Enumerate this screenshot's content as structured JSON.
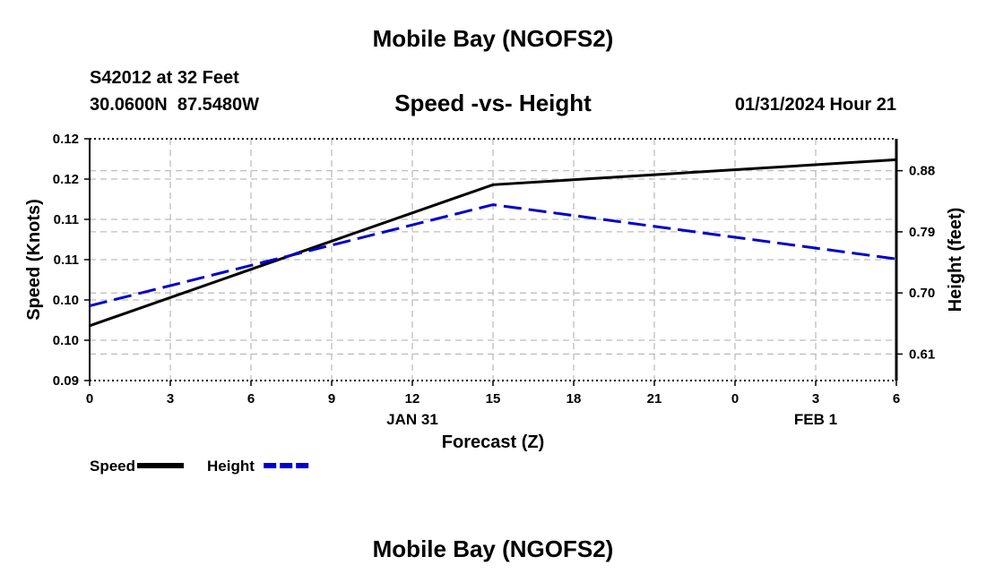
{
  "header": {
    "title": "Mobile Bay (NGOFS2)",
    "station": "S42012 at 32 Feet",
    "coordinates": "30.0600N  87.5480W",
    "timestamp": "01/31/2024 Hour 21"
  },
  "footer": {
    "title": "Mobile Bay (NGOFS2)"
  },
  "chart_data": {
    "type": "line",
    "title": "Speed -vs- Height",
    "xlabel": "Forecast (Z)",
    "x_tick_labels": [
      "0",
      "3",
      "6",
      "9",
      "12",
      "15",
      "18",
      "21",
      "0",
      "3",
      "6"
    ],
    "x_date_labels": [
      {
        "label": "JAN 31",
        "hours": 12
      },
      {
        "label": "FEB 1",
        "hours": 27
      }
    ],
    "xlim_hours": [
      0,
      30
    ],
    "grid": true,
    "legend_position": "bottom-left",
    "y_left": {
      "label": "Speed (Knots)",
      "lim": [
        0.09,
        0.12
      ],
      "tick_labels": [
        "0.12",
        "0.12",
        "0.11",
        "0.11",
        "0.10",
        "0.10",
        "0.09"
      ],
      "tick_values": [
        0.12,
        0.115,
        0.11,
        0.105,
        0.1,
        0.095,
        0.09
      ]
    },
    "y_right": {
      "label": "Height (feet)",
      "lim": [
        0.571,
        0.927
      ],
      "tick_labels": [
        "0.88",
        "0.79",
        "0.70",
        "0.61"
      ],
      "tick_values": [
        0.88,
        0.79,
        0.7,
        0.61
      ]
    },
    "series": [
      {
        "name": "Speed",
        "axis": "left",
        "color": "#000000",
        "dash": "solid",
        "points": [
          [
            0,
            0.0968
          ],
          [
            15,
            0.1143
          ],
          [
            30,
            0.1174
          ]
        ]
      },
      {
        "name": "Height",
        "axis": "right",
        "color": "#0000cc",
        "dash": "dashed",
        "points": [
          [
            0,
            0.681
          ],
          [
            15,
            0.83
          ],
          [
            30,
            0.75
          ]
        ]
      }
    ]
  }
}
